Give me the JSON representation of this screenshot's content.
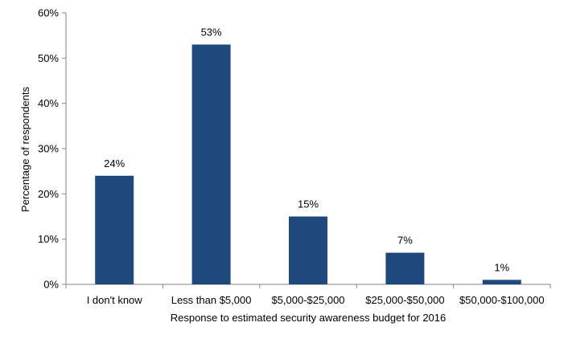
{
  "chart_data": {
    "type": "bar",
    "title": "",
    "xlabel": "Response to estimated security awareness budget for 2016",
    "ylabel": "Percentage of respondents",
    "categories": [
      "I don't know",
      "Less than $5,000",
      "$5,000-$25,000",
      "$25,000-$50,000",
      "$50,000-$100,000"
    ],
    "values": [
      24,
      53,
      15,
      7,
      1
    ],
    "data_labels": [
      "24%",
      "53%",
      "15%",
      "7%",
      "1%"
    ],
    "yticks": [
      0,
      10,
      20,
      30,
      40,
      50,
      60
    ],
    "ytick_labels": [
      "0%",
      "10%",
      "20%",
      "30%",
      "40%",
      "50%",
      "60%"
    ],
    "ylim": [
      0,
      60
    ],
    "grid": false,
    "legend": "none",
    "bar_color": "#1f497d",
    "axis_color": "#868686"
  }
}
